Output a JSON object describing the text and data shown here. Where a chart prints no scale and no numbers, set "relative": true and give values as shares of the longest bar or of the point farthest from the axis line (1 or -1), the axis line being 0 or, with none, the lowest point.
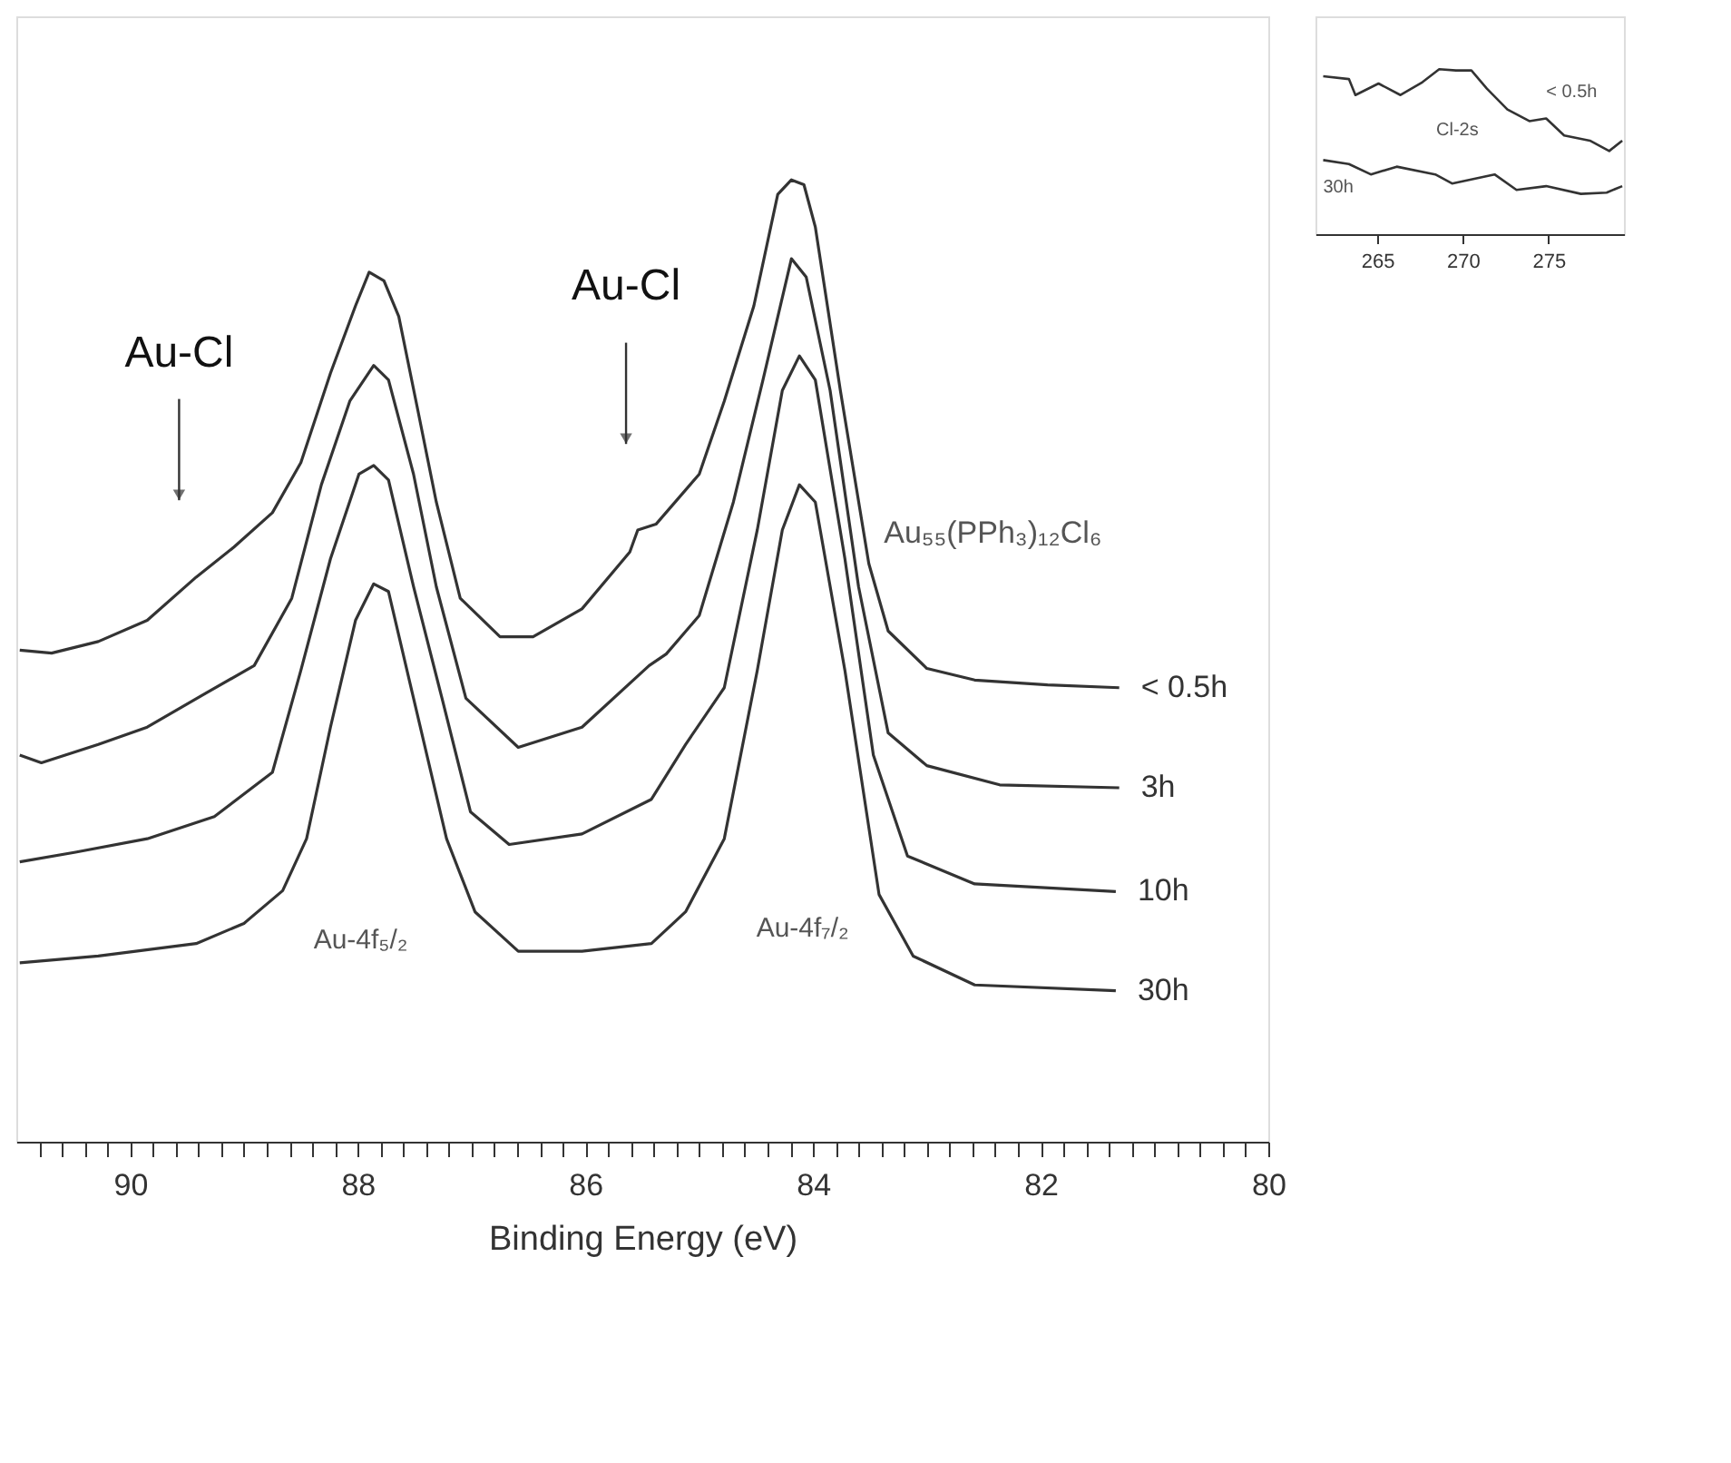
{
  "chart_data": [
    {
      "type": "line",
      "xlabel": "Binding Energy (eV)",
      "relative": true,
      "legend": false,
      "grid": false,
      "line_style": "solid",
      "marker": "none",
      "xlim": [
        91,
        80
      ],
      "xticks": [
        {
          "value": 80.2,
          "label": null
        },
        {
          "value": 80.4,
          "label": null
        },
        {
          "value": 80.6,
          "label": null
        },
        {
          "value": 80.8,
          "label": null
        },
        {
          "value": 81,
          "label": null
        },
        {
          "value": 81.2,
          "label": null
        },
        {
          "value": 81.4,
          "label": null
        },
        {
          "value": 81.6,
          "label": null
        },
        {
          "value": 81.8,
          "label": null
        },
        {
          "value": 82.2,
          "label": null
        },
        {
          "value": 82.4,
          "label": null
        },
        {
          "value": 82.6,
          "label": null
        },
        {
          "value": 82.8,
          "label": null
        },
        {
          "value": 83,
          "label": null
        },
        {
          "value": 83.2,
          "label": null
        },
        {
          "value": 83.4,
          "label": null
        },
        {
          "value": 83.6,
          "label": null
        },
        {
          "value": 83.8,
          "label": null
        },
        {
          "value": 84.2,
          "label": null
        },
        {
          "value": 84.4,
          "label": null
        },
        {
          "value": 84.6,
          "label": null
        },
        {
          "value": 84.8,
          "label": null
        },
        {
          "value": 85,
          "label": null
        },
        {
          "value": 85.2,
          "label": null
        },
        {
          "value": 85.4,
          "label": null
        },
        {
          "value": 85.6,
          "label": null
        },
        {
          "value": 85.8,
          "label": null
        },
        {
          "value": 86.2,
          "label": null
        },
        {
          "value": 86.4,
          "label": null
        },
        {
          "value": 86.6,
          "label": null
        },
        {
          "value": 86.8,
          "label": null
        },
        {
          "value": 87,
          "label": null
        },
        {
          "value": 87.2,
          "label": null
        },
        {
          "value": 87.4,
          "label": null
        },
        {
          "value": 87.6,
          "label": null
        },
        {
          "value": 87.8,
          "label": null
        },
        {
          "value": 88.2,
          "label": null
        },
        {
          "value": 88.4,
          "label": null
        },
        {
          "value": 88.6,
          "label": null
        },
        {
          "value": 88.8,
          "label": null
        },
        {
          "value": 89,
          "label": null
        },
        {
          "value": 89.2,
          "label": null
        },
        {
          "value": 89.4,
          "label": null
        },
        {
          "value": 89.6,
          "label": null
        },
        {
          "value": 89.8,
          "label": null
        },
        {
          "value": 90.2,
          "label": null
        },
        {
          "value": 90.4,
          "label": null
        },
        {
          "value": 90.6,
          "label": null
        },
        {
          "value": 90.8,
          "label": null
        },
        80,
        82,
        84,
        86,
        88,
        90
      ],
      "tick_labels": "x",
      "series": [
        {
          "name": "< 0.5h",
          "color": "#333333",
          "x": [
            90.97,
            90.69,
            90.28,
            89.85,
            89.42,
            89.09,
            88.75,
            88.5,
            88.24,
            88.02,
            87.9,
            87.77,
            87.64,
            87.48,
            87.31,
            87.1,
            86.75,
            86.46,
            86.03,
            85.61,
            85.54,
            85.38,
            85.0,
            84.78,
            84.52,
            84.31,
            84.19,
            84.08,
            83.98,
            83.76,
            83.51,
            83.34,
            83.0,
            82.58,
            81.94,
            81.31
          ],
          "values": [
            0.511,
            0.508,
            0.52,
            0.542,
            0.587,
            0.618,
            0.654,
            0.706,
            0.799,
            0.869,
            0.904,
            0.895,
            0.858,
            0.765,
            0.665,
            0.565,
            0.525,
            0.525,
            0.554,
            0.613,
            0.636,
            0.642,
            0.694,
            0.77,
            0.869,
            0.985,
            1.0,
            0.995,
            0.951,
            0.781,
            0.601,
            0.531,
            0.492,
            0.48,
            0.475,
            0.472
          ]
        },
        {
          "name": "3h",
          "color": "#333333",
          "x": [
            90.97,
            90.78,
            90.28,
            89.85,
            89.34,
            88.91,
            88.58,
            88.32,
            88.07,
            87.86,
            87.73,
            87.51,
            87.31,
            87.05,
            86.59,
            86.03,
            85.44,
            85.29,
            85.0,
            84.7,
            84.44,
            84.19,
            84.06,
            83.85,
            83.6,
            83.34,
            83.0,
            82.36,
            81.31
          ],
          "values": [
            0.402,
            0.394,
            0.413,
            0.431,
            0.466,
            0.495,
            0.565,
            0.683,
            0.77,
            0.807,
            0.792,
            0.694,
            0.577,
            0.461,
            0.41,
            0.431,
            0.495,
            0.507,
            0.547,
            0.665,
            0.792,
            0.918,
            0.899,
            0.781,
            0.577,
            0.425,
            0.391,
            0.371,
            0.368
          ]
        },
        {
          "name": "10h",
          "color": "#333333",
          "x": [
            90.97,
            90.48,
            89.85,
            89.26,
            88.75,
            88.5,
            88.24,
            87.99,
            87.86,
            87.73,
            87.51,
            87.26,
            87.01,
            86.67,
            86.03,
            85.42,
            85.12,
            84.78,
            84.49,
            84.27,
            84.12,
            83.98,
            83.72,
            83.47,
            83.17,
            82.58,
            81.34
          ],
          "values": [
            0.291,
            0.301,
            0.315,
            0.338,
            0.384,
            0.49,
            0.606,
            0.694,
            0.703,
            0.688,
            0.577,
            0.461,
            0.343,
            0.309,
            0.32,
            0.356,
            0.413,
            0.472,
            0.636,
            0.781,
            0.817,
            0.792,
            0.606,
            0.402,
            0.297,
            0.268,
            0.26
          ]
        },
        {
          "name": "30h",
          "color": "#333333",
          "x": [
            90.97,
            90.28,
            89.42,
            89.0,
            88.66,
            88.45,
            88.24,
            88.02,
            87.86,
            87.73,
            87.51,
            87.22,
            86.97,
            86.59,
            86.03,
            85.42,
            85.12,
            84.78,
            84.49,
            84.27,
            84.12,
            83.98,
            83.72,
            83.42,
            83.12,
            82.58,
            81.34
          ],
          "values": [
            0.186,
            0.193,
            0.206,
            0.227,
            0.261,
            0.315,
            0.431,
            0.542,
            0.58,
            0.572,
            0.461,
            0.315,
            0.239,
            0.198,
            0.198,
            0.206,
            0.239,
            0.315,
            0.49,
            0.636,
            0.683,
            0.665,
            0.49,
            0.257,
            0.193,
            0.163,
            0.157
          ]
        }
      ],
      "annotations": [
        "Au-Cl",
        "Au-Cl",
        "Au-4f₅/₂",
        "Au-4f₇/₂",
        "Au₅₅(PPh₃)₁₂Cl₆"
      ]
    },
    {
      "type": "line",
      "relative": true,
      "legend": false,
      "grid": false,
      "line_style": "solid",
      "marker": "none",
      "xlim": [
        261.4,
        279.4
      ],
      "xticks": [
        265,
        270,
        275
      ],
      "tick_labels": "x",
      "series": [
        {
          "name": "< 0.5h",
          "color": "#333333",
          "x": [
            261.85,
            263.35,
            263.73,
            265.08,
            266.36,
            267.64,
            268.62,
            269.6,
            270.5,
            271.4,
            272.6,
            273.88,
            274.86,
            275.91,
            277.41,
            278.54,
            279.3
          ],
          "values": [
            0.957,
            0.94,
            0.843,
            0.913,
            0.843,
            0.921,
            1.0,
            0.992,
            0.992,
            0.882,
            0.756,
            0.685,
            0.701,
            0.598,
            0.567,
            0.504,
            0.567
          ]
        },
        {
          "name": "30h",
          "color": "#333333",
          "x": [
            261.85,
            263.35,
            264.63,
            266.14,
            268.39,
            269.37,
            271.85,
            273.13,
            274.86,
            276.89,
            278.39,
            279.3
          ],
          "values": [
            0.449,
            0.425,
            0.362,
            0.409,
            0.362,
            0.307,
            0.362,
            0.268,
            0.291,
            0.244,
            0.252,
            0.291
          ]
        }
      ],
      "annotations": [
        "Cl-2s"
      ]
    }
  ]
}
